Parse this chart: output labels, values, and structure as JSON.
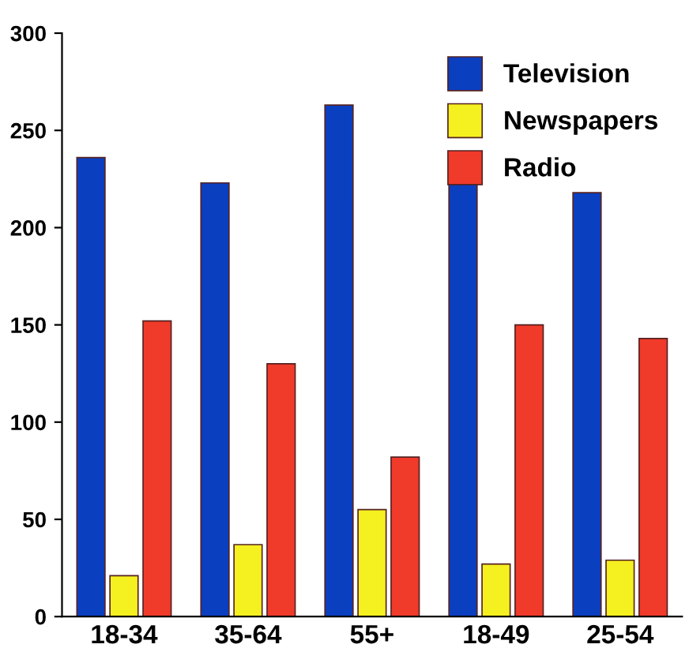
{
  "chart_data": {
    "type": "bar",
    "categories": [
      "18-34",
      "35-64",
      "55+",
      "18-49",
      "25-54"
    ],
    "series": [
      {
        "name": "Television",
        "color": "#0a3fc0",
        "values": [
          236,
          223,
          263,
          223,
          218
        ]
      },
      {
        "name": "Newspapers",
        "color": "#f5f020",
        "values": [
          21,
          37,
          55,
          27,
          29
        ]
      },
      {
        "name": "Radio",
        "color": "#f03a2a",
        "values": [
          152,
          130,
          82,
          150,
          143
        ]
      }
    ],
    "ylim": [
      0,
      300
    ],
    "yticks": [
      0,
      50,
      100,
      150,
      200,
      250,
      300
    ],
    "grid": false,
    "legend": "top right"
  }
}
